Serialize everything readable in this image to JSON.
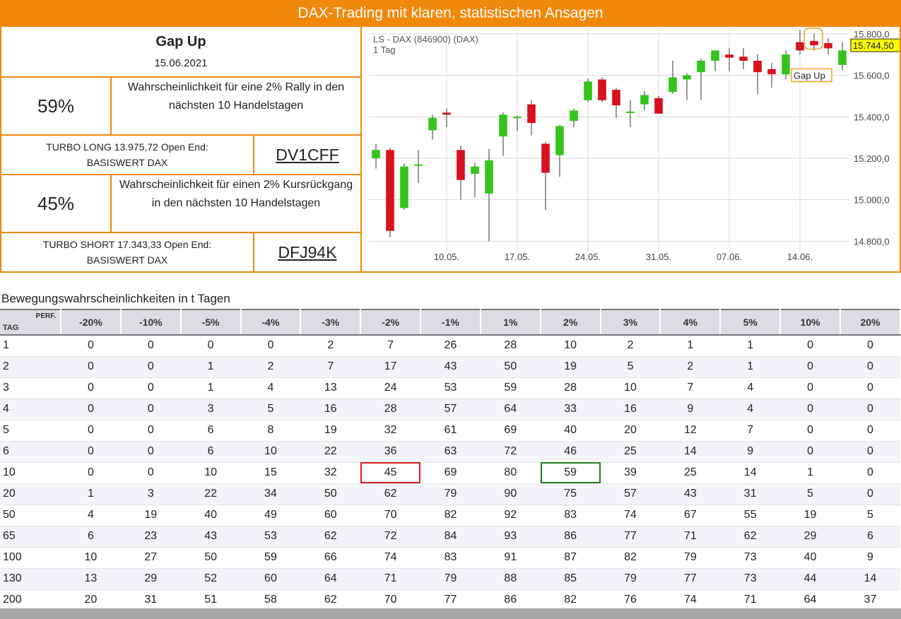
{
  "header": {
    "title": "DAX-Trading mit klaren, statistischen Ansagen"
  },
  "signal": {
    "name": "Gap Up",
    "date": "15.06.2021"
  },
  "long": {
    "pct": "59%",
    "desc_line1": "Wahrscheinlichkeit für eine 2% Rally in den",
    "desc_line2": "nächsten 10 Handelstagen",
    "turbo_line1": "TURBO LONG 13.975,72 Open End:",
    "turbo_line2": "BASISWERT DAX",
    "wkn": "DV1CFF"
  },
  "short": {
    "pct": "45%",
    "desc_line1": "Wahrscheinlichkeit für einen 2% Kursrückgang",
    "desc_line2": "in den nächsten 10 Handelstagen",
    "turbo_line1": "TURBO SHORT 17.343,33 Open End:",
    "turbo_line2": "BASISWERT DAX",
    "wkn": "DFJ94K"
  },
  "chart_data": {
    "type": "candlestick",
    "title": "LS - DAX (846900) (DAX)",
    "subtitle": "1 Tag",
    "last_price": "15.744,50",
    "annotation": "Gap Up",
    "ylim": [
      14750,
      15820
    ],
    "yticks": [
      {
        "v": 15800,
        "label": "15.800,0"
      },
      {
        "v": 15600,
        "label": "15.600,0"
      },
      {
        "v": 15400,
        "label": "15.400,0"
      },
      {
        "v": 15200,
        "label": "15.200,0"
      },
      {
        "v": 15000,
        "label": "15.000,0"
      },
      {
        "v": 14800,
        "label": "14.800,0"
      }
    ],
    "xticks": [
      {
        "i": 5.5,
        "label": "10.05."
      },
      {
        "i": 10.5,
        "label": "17.05."
      },
      {
        "i": 15.5,
        "label": "24.05."
      },
      {
        "i": 20.5,
        "label": "31.05."
      },
      {
        "i": 25.5,
        "label": "07.06."
      },
      {
        "i": 30.5,
        "label": "14.06."
      }
    ],
    "colors": {
      "up": "#34c41c",
      "down": "#d8111c",
      "grid": "#d8d8d8",
      "axis_text": "#444444",
      "label_bg": "#ffff00",
      "annotation_border": "#f0a020"
    },
    "candles": [
      {
        "o": 15200,
        "h": 15270,
        "l": 15150,
        "c": 15240
      },
      {
        "o": 15240,
        "h": 15250,
        "l": 14820,
        "c": 14850
      },
      {
        "o": 14960,
        "h": 15175,
        "l": 14950,
        "c": 15160
      },
      {
        "o": 15170,
        "h": 15240,
        "l": 15080,
        "c": 15170
      },
      {
        "o": 15335,
        "h": 15410,
        "l": 15290,
        "c": 15395
      },
      {
        "o": 15420,
        "h": 15440,
        "l": 15350,
        "c": 15410
      },
      {
        "o": 15240,
        "h": 15260,
        "l": 15000,
        "c": 15095
      },
      {
        "o": 15125,
        "h": 15180,
        "l": 15010,
        "c": 15160
      },
      {
        "o": 15030,
        "h": 15245,
        "l": 14800,
        "c": 15190
      },
      {
        "o": 15305,
        "h": 15420,
        "l": 15210,
        "c": 15410
      },
      {
        "o": 15400,
        "h": 15405,
        "l": 15330,
        "c": 15400
      },
      {
        "o": 15460,
        "h": 15480,
        "l": 15310,
        "c": 15370
      },
      {
        "o": 15270,
        "h": 15280,
        "l": 14950,
        "c": 15130
      },
      {
        "o": 15215,
        "h": 15360,
        "l": 15110,
        "c": 15355
      },
      {
        "o": 15380,
        "h": 15440,
        "l": 15350,
        "c": 15430
      },
      {
        "o": 15480,
        "h": 15585,
        "l": 15470,
        "c": 15570
      },
      {
        "o": 15580,
        "h": 15590,
        "l": 15470,
        "c": 15480
      },
      {
        "o": 15530,
        "h": 15540,
        "l": 15395,
        "c": 15455
      },
      {
        "o": 15420,
        "h": 15480,
        "l": 15350,
        "c": 15425
      },
      {
        "o": 15460,
        "h": 15525,
        "l": 15430,
        "c": 15505
      },
      {
        "o": 15490,
        "h": 15500,
        "l": 15420,
        "c": 15415
      },
      {
        "o": 15520,
        "h": 15670,
        "l": 15510,
        "c": 15590
      },
      {
        "o": 15580,
        "h": 15610,
        "l": 15480,
        "c": 15600
      },
      {
        "o": 15615,
        "h": 15680,
        "l": 15480,
        "c": 15670
      },
      {
        "o": 15670,
        "h": 15710,
        "l": 15620,
        "c": 15720
      },
      {
        "o": 15700,
        "h": 15730,
        "l": 15620,
        "c": 15685
      },
      {
        "o": 15690,
        "h": 15730,
        "l": 15630,
        "c": 15670
      },
      {
        "o": 15670,
        "h": 15700,
        "l": 15510,
        "c": 15615
      },
      {
        "o": 15630,
        "h": 15660,
        "l": 15540,
        "c": 15605
      },
      {
        "o": 15605,
        "h": 15720,
        "l": 15580,
        "c": 15700
      },
      {
        "o": 15760,
        "h": 15820,
        "l": 15700,
        "c": 15720
      },
      {
        "o": 15765,
        "h": 15800,
        "l": 15720,
        "c": 15745
      },
      {
        "o": 15755,
        "h": 15780,
        "l": 15700,
        "c": 15730
      },
      {
        "o": 15650,
        "h": 15760,
        "l": 15625,
        "c": 15720
      }
    ]
  },
  "table": {
    "title": "Bewegungswahrscheinlichkeiten in t Tagen",
    "corner_tag": "TAG",
    "corner_perf": "PERF.",
    "columns": [
      "-20%",
      "-10%",
      "-5%",
      "-4%",
      "-3%",
      "-2%",
      "-1%",
      "1%",
      "2%",
      "3%",
      "4%",
      "5%",
      "10%",
      "20%"
    ],
    "rows": [
      {
        "day": "1",
        "values": [
          "0",
          "0",
          "0",
          "0",
          "2",
          "7",
          "26",
          "28",
          "10",
          "2",
          "1",
          "1",
          "0",
          "0"
        ]
      },
      {
        "day": "2",
        "values": [
          "0",
          "0",
          "1",
          "2",
          "7",
          "17",
          "43",
          "50",
          "19",
          "5",
          "2",
          "1",
          "0",
          "0"
        ]
      },
      {
        "day": "3",
        "values": [
          "0",
          "0",
          "1",
          "4",
          "13",
          "24",
          "53",
          "59",
          "28",
          "10",
          "7",
          "4",
          "0",
          "0"
        ]
      },
      {
        "day": "4",
        "values": [
          "0",
          "0",
          "3",
          "5",
          "16",
          "28",
          "57",
          "64",
          "33",
          "16",
          "9",
          "4",
          "0",
          "0"
        ]
      },
      {
        "day": "5",
        "values": [
          "0",
          "0",
          "6",
          "8",
          "19",
          "32",
          "61",
          "69",
          "40",
          "20",
          "12",
          "7",
          "0",
          "0"
        ]
      },
      {
        "day": "6",
        "values": [
          "0",
          "0",
          "6",
          "10",
          "22",
          "36",
          "63",
          "72",
          "46",
          "25",
          "14",
          "9",
          "0",
          "0"
        ]
      },
      {
        "day": "10",
        "values": [
          "0",
          "0",
          "10",
          "15",
          "32",
          "45",
          "69",
          "80",
          "59",
          "39",
          "25",
          "14",
          "1",
          "0"
        ]
      },
      {
        "day": "20",
        "values": [
          "1",
          "3",
          "22",
          "34",
          "50",
          "62",
          "79",
          "90",
          "75",
          "57",
          "43",
          "31",
          "5",
          "0"
        ]
      },
      {
        "day": "50",
        "values": [
          "4",
          "19",
          "40",
          "49",
          "60",
          "70",
          "82",
          "92",
          "83",
          "74",
          "67",
          "55",
          "19",
          "5"
        ]
      },
      {
        "day": "65",
        "values": [
          "6",
          "23",
          "43",
          "53",
          "62",
          "72",
          "84",
          "93",
          "86",
          "77",
          "71",
          "62",
          "29",
          "6"
        ]
      },
      {
        "day": "100",
        "values": [
          "10",
          "27",
          "50",
          "59",
          "66",
          "74",
          "83",
          "91",
          "87",
          "82",
          "79",
          "73",
          "40",
          "9"
        ]
      },
      {
        "day": "130",
        "values": [
          "13",
          "29",
          "52",
          "60",
          "64",
          "71",
          "79",
          "88",
          "85",
          "79",
          "77",
          "73",
          "44",
          "14"
        ]
      },
      {
        "day": "200",
        "values": [
          "20",
          "31",
          "51",
          "58",
          "62",
          "70",
          "77",
          "86",
          "82",
          "76",
          "74",
          "71",
          "64",
          "37"
        ]
      }
    ],
    "highlights": [
      {
        "row": "10",
        "col": "-2%",
        "color": "red"
      },
      {
        "row": "10",
        "col": "2%",
        "color": "green"
      }
    ]
  }
}
